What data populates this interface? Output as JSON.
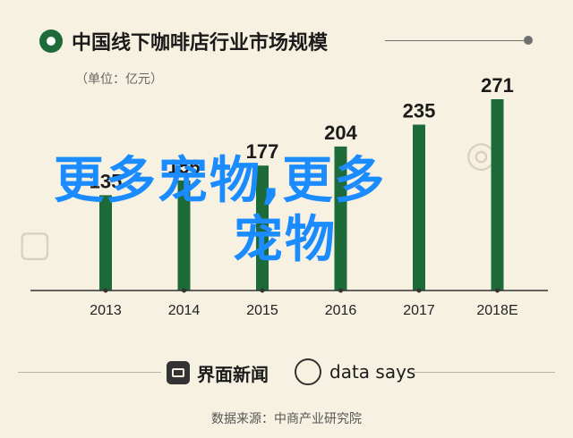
{
  "title": "中国线下咖啡店行业市场规模",
  "unit": "（单位：亿元）",
  "overlay_text": {
    "line1": "更多宠物,更多",
    "line2": "宠物"
  },
  "footer": {
    "brand1": "界面新闻",
    "brand2": "data says",
    "source": "数据来源：中商产业研究院"
  },
  "colors": {
    "bar": "#1e6b3a",
    "axis": "#333333",
    "background": "#f7f1e1",
    "overlay": "#1a8cff"
  },
  "chart_data": {
    "type": "bar",
    "title": "中国线下咖啡店行业市场规模",
    "ylabel": "（单位：亿元）",
    "categories": [
      "2013",
      "2014",
      "2015",
      "2016",
      "2017",
      "2018E"
    ],
    "values": [
      135,
      156,
      177,
      204,
      235,
      271
    ],
    "ylim": [
      0,
      271
    ],
    "grid": false,
    "legend": "none"
  }
}
